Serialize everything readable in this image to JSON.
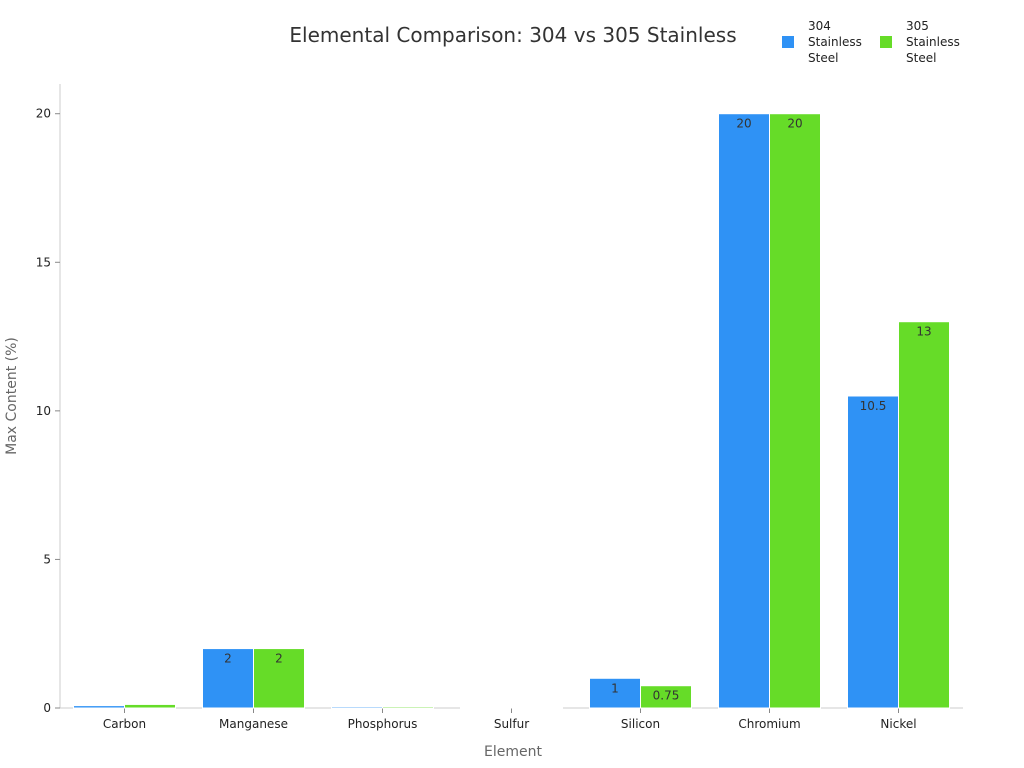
{
  "chart_data": {
    "type": "bar",
    "title": "Elemental Comparison: 304 vs 305 Stainless",
    "xlabel": "Element",
    "ylabel": "Max Content (%)",
    "categories": [
      "Carbon",
      "Manganese",
      "Phosphorus",
      "Sulfur",
      "Silicon",
      "Chromium",
      "Nickel"
    ],
    "series": [
      {
        "name": "304 Stainless Steel",
        "color": "#2f92f5",
        "values": [
          0.08,
          2,
          0.045,
          0.03,
          1,
          20,
          10.5
        ]
      },
      {
        "name": "305 Stainless Steel",
        "color": "#66dc28",
        "values": [
          0.12,
          2,
          0.045,
          0.03,
          0.75,
          20,
          13
        ]
      }
    ],
    "ylim": [
      0,
      21
    ],
    "yticks": [
      0,
      5,
      10,
      15,
      20
    ],
    "grid": false,
    "legend_position": "top-right"
  }
}
